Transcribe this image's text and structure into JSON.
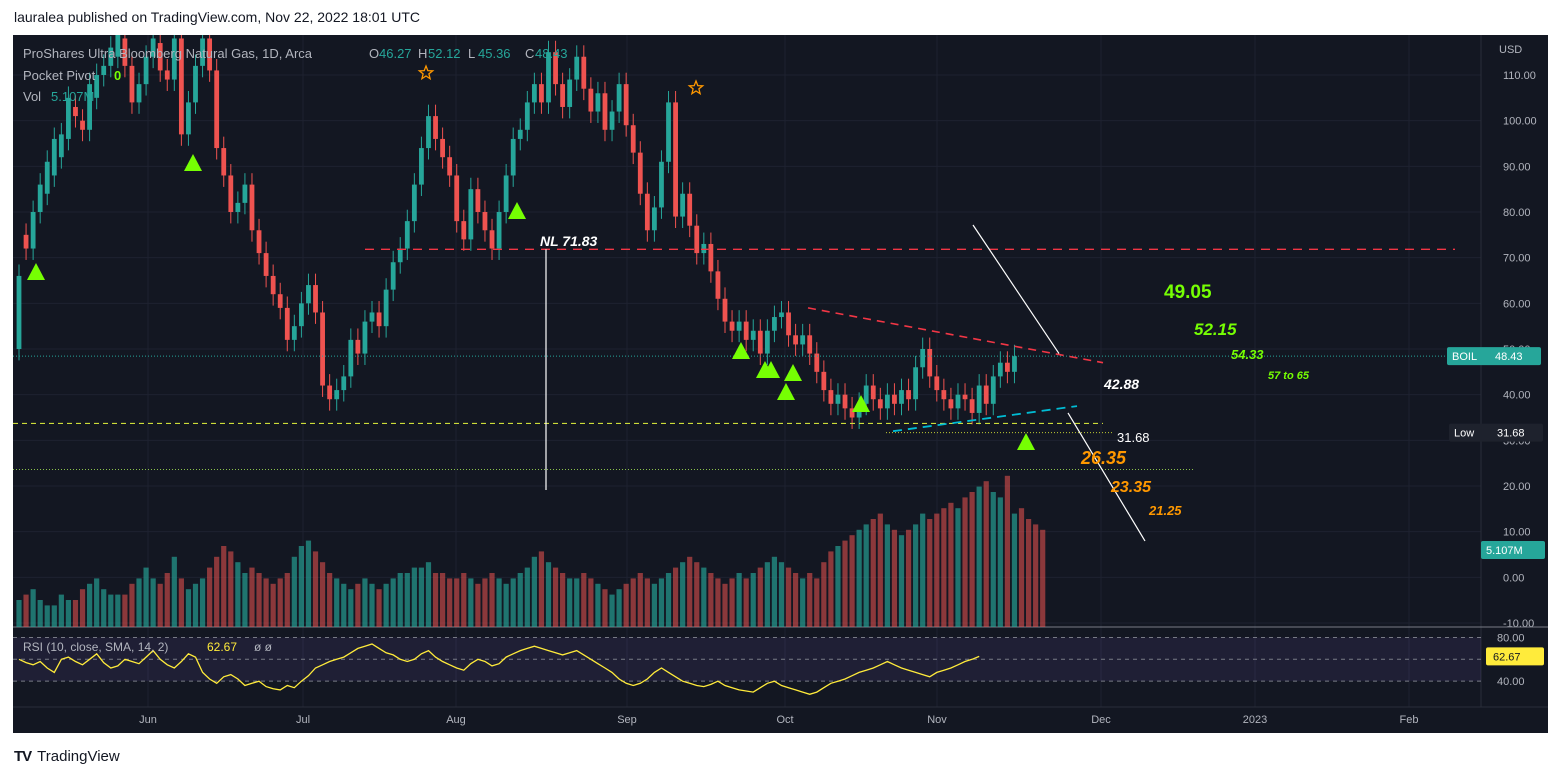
{
  "header": {
    "published": "lauralea published on TradingView.com, Nov 22, 2022 18:01 UTC"
  },
  "footer": {
    "brand": "TradingView",
    "logo": "TV"
  },
  "colors": {
    "bg": "#131722",
    "up": "#26a69a",
    "down": "#ef5350",
    "signal": "#76ff03",
    "annotation_green": "#76ff03",
    "annotation_orange": "#ff9800",
    "resistance": "#f23645",
    "support": "#00bcd4",
    "rsi": "#ffeb3b"
  },
  "chart_data": {
    "type": "candlestick",
    "symbol": "BOIL",
    "legend": {
      "name": "ProShares Ultra Bloomberg Natural Gas, 1D, Arca",
      "o_label": "O",
      "o": "46.27",
      "h_label": "H",
      "h": "52.12",
      "l_label": "L",
      "l": "45.36",
      "c_label": "C",
      "c": "48.43",
      "pivot_label": "Pocket Pivot",
      "pivot_value": "0",
      "vol_label": "Vol",
      "vol_value": "5.107M"
    },
    "currency": "USD",
    "ylim": [
      -10,
      120
    ],
    "y_ticks": [
      "110.00",
      "100.00",
      "90.00",
      "80.00",
      "70.00",
      "60.00",
      "50.00",
      "40.00",
      "30.00",
      "20.00",
      "10.00",
      "0.00",
      "-10.00"
    ],
    "x_ticks": [
      "Jun",
      "Jul",
      "Aug",
      "Sep",
      "Oct",
      "Nov",
      "Dec",
      "2023",
      "Feb"
    ],
    "price_badges": [
      {
        "label": "BOIL",
        "value": "48.43"
      },
      {
        "label": "Low",
        "value": "31.68"
      },
      {
        "label": "",
        "value": "5.107M"
      }
    ],
    "candles": [
      [
        50,
        66
      ],
      [
        75,
        72
      ],
      [
        72,
        80
      ],
      [
        80,
        86
      ],
      [
        84,
        91
      ],
      [
        88,
        96
      ],
      [
        92,
        97
      ],
      [
        96,
        105
      ],
      [
        103,
        101
      ],
      [
        100,
        98
      ],
      [
        98,
        108
      ],
      [
        105,
        110
      ],
      [
        110,
        112
      ],
      [
        112,
        116
      ],
      [
        114,
        120
      ],
      [
        118,
        112
      ],
      [
        112,
        104
      ],
      [
        104,
        108
      ],
      [
        108,
        114
      ],
      [
        114,
        118
      ],
      [
        117,
        111
      ],
      [
        111,
        109
      ],
      [
        109,
        118
      ],
      [
        118,
        97
      ],
      [
        97,
        104
      ],
      [
        104,
        112
      ],
      [
        112,
        118
      ],
      [
        118,
        111
      ],
      [
        111,
        94
      ],
      [
        94,
        88
      ],
      [
        88,
        80
      ],
      [
        80,
        82
      ],
      [
        82,
        86
      ],
      [
        86,
        76
      ],
      [
        76,
        71
      ],
      [
        71,
        66
      ],
      [
        66,
        62
      ],
      [
        62,
        59
      ],
      [
        59,
        52
      ],
      [
        52,
        55
      ],
      [
        55,
        60
      ],
      [
        60,
        64
      ],
      [
        64,
        58
      ],
      [
        58,
        42
      ],
      [
        42,
        39
      ],
      [
        39,
        41
      ],
      [
        41,
        44
      ],
      [
        44,
        52
      ],
      [
        52,
        49
      ],
      [
        49,
        56
      ],
      [
        56,
        58
      ],
      [
        58,
        55
      ],
      [
        55,
        63
      ],
      [
        63,
        69
      ],
      [
        69,
        72
      ],
      [
        72,
        78
      ],
      [
        78,
        86
      ],
      [
        86,
        94
      ],
      [
        94,
        101
      ],
      [
        101,
        96
      ],
      [
        96,
        92
      ],
      [
        92,
        88
      ],
      [
        88,
        78
      ],
      [
        78,
        74
      ],
      [
        74,
        85
      ],
      [
        85,
        80
      ],
      [
        80,
        76
      ],
      [
        76,
        72
      ],
      [
        72,
        80
      ],
      [
        80,
        88
      ],
      [
        88,
        96
      ],
      [
        96,
        98
      ],
      [
        98,
        104
      ],
      [
        104,
        108
      ],
      [
        108,
        104
      ],
      [
        104,
        115
      ],
      [
        115,
        108
      ],
      [
        108,
        103
      ],
      [
        103,
        109
      ],
      [
        109,
        114
      ],
      [
        114,
        107
      ],
      [
        107,
        102
      ],
      [
        102,
        106
      ],
      [
        106,
        98
      ],
      [
        98,
        102
      ],
      [
        102,
        108
      ],
      [
        108,
        99
      ],
      [
        99,
        93
      ],
      [
        93,
        84
      ],
      [
        84,
        76
      ],
      [
        76,
        81
      ],
      [
        81,
        91
      ],
      [
        91,
        104
      ],
      [
        104,
        79
      ],
      [
        79,
        84
      ],
      [
        84,
        77
      ],
      [
        77,
        71
      ],
      [
        71,
        73
      ],
      [
        73,
        67
      ],
      [
        67,
        61
      ],
      [
        61,
        56
      ],
      [
        56,
        54
      ],
      [
        54,
        56
      ],
      [
        56,
        52
      ],
      [
        52,
        54
      ],
      [
        54,
        49
      ],
      [
        49,
        54
      ],
      [
        54,
        57
      ],
      [
        57,
        58
      ],
      [
        58,
        53
      ],
      [
        53,
        51
      ],
      [
        51,
        53
      ],
      [
        53,
        49
      ],
      [
        49,
        45
      ],
      [
        45,
        41
      ],
      [
        41,
        38
      ],
      [
        38,
        40
      ],
      [
        40,
        37
      ],
      [
        37,
        35
      ],
      [
        35,
        38
      ],
      [
        38,
        42
      ],
      [
        42,
        39
      ],
      [
        39,
        37
      ],
      [
        37,
        40
      ],
      [
        40,
        38
      ],
      [
        38,
        41
      ],
      [
        41,
        39
      ],
      [
        39,
        46
      ],
      [
        46,
        50
      ],
      [
        50,
        44
      ],
      [
        44,
        41
      ],
      [
        41,
        39
      ],
      [
        39,
        37
      ],
      [
        37,
        40
      ],
      [
        40,
        39
      ],
      [
        39,
        36
      ],
      [
        36,
        42
      ],
      [
        42,
        38
      ],
      [
        38,
        44
      ],
      [
        44,
        47
      ],
      [
        47,
        45
      ],
      [
        45,
        48.43
      ]
    ],
    "signal_arrows": 14,
    "annotations": [
      {
        "text": "NL 71.83",
        "color": "white"
      },
      {
        "text": "49.05",
        "color": "green"
      },
      {
        "text": "52.15",
        "color": "green"
      },
      {
        "text": "54.33",
        "color": "green"
      },
      {
        "text": "57 to 65",
        "color": "green"
      },
      {
        "text": "42.88",
        "color": "white"
      },
      {
        "text": "31.68",
        "color": "white"
      },
      {
        "text": "26.35",
        "color": "orange"
      },
      {
        "text": "23.35",
        "color": "orange"
      },
      {
        "text": "21.25",
        "color": "orange"
      }
    ],
    "volume": [
      5,
      6,
      7,
      5,
      4,
      4,
      6,
      5,
      5,
      7,
      8,
      9,
      7,
      6,
      6,
      6,
      8,
      9,
      11,
      9,
      8,
      10,
      13,
      9,
      7,
      8,
      9,
      11,
      13,
      15,
      14,
      12,
      10,
      11,
      10,
      9,
      8,
      9,
      10,
      13,
      15,
      16,
      14,
      12,
      10,
      9,
      8,
      7,
      8,
      9,
      8,
      7,
      8,
      9,
      10,
      10,
      11,
      11,
      12,
      10,
      10,
      9,
      9,
      10,
      9,
      8,
      9,
      10,
      9,
      8,
      9,
      10,
      11,
      13,
      14,
      12,
      11,
      10,
      9,
      9,
      10,
      9,
      8,
      7,
      6,
      7,
      8,
      9,
      10,
      9,
      8,
      9,
      10,
      11,
      12,
      13,
      12,
      11,
      10,
      9,
      8,
      9,
      10,
      9,
      10,
      11,
      12,
      13,
      12,
      11,
      10,
      9,
      10,
      9,
      12,
      14,
      15,
      16,
      17,
      18,
      19,
      20,
      21,
      19,
      18,
      17,
      18,
      19,
      21,
      20,
      21,
      22,
      23,
      22,
      24,
      25,
      26,
      27,
      25,
      24,
      28,
      21,
      22,
      20,
      19,
      18
    ],
    "rsi": {
      "label": "RSI (10, close, SMA, 14, 2)",
      "value": "62.67",
      "na_marks": "ø  ø",
      "ticks": [
        "80.00",
        "40.00"
      ],
      "values": [
        60,
        57,
        55,
        58,
        52,
        48,
        60,
        62,
        58,
        55,
        60,
        65,
        57,
        52,
        54,
        60,
        58,
        56,
        62,
        68,
        60,
        55,
        52,
        58,
        65,
        62,
        48,
        42,
        38,
        44,
        46,
        42,
        36,
        38,
        40,
        35,
        33,
        32,
        36,
        34,
        40,
        45,
        52,
        55,
        58,
        60,
        62,
        66,
        70,
        72,
        74,
        70,
        66,
        64,
        60,
        58,
        60,
        65,
        68,
        62,
        58,
        55,
        52,
        50,
        56,
        60,
        58,
        54,
        56,
        62,
        65,
        68,
        70,
        72,
        70,
        68,
        66,
        64,
        66,
        68,
        64,
        60,
        56,
        52,
        48,
        42,
        38,
        36,
        38,
        42,
        48,
        52,
        48,
        44,
        40,
        38,
        36,
        35,
        37,
        40,
        36,
        34,
        32,
        31,
        30,
        34,
        38,
        40,
        36,
        34,
        32,
        30,
        28,
        30,
        34,
        38,
        40,
        42,
        45,
        48,
        50,
        52,
        55,
        58,
        55,
        52,
        50,
        48,
        46,
        44,
        48,
        50,
        52,
        55,
        58,
        60,
        62.67
      ]
    }
  }
}
